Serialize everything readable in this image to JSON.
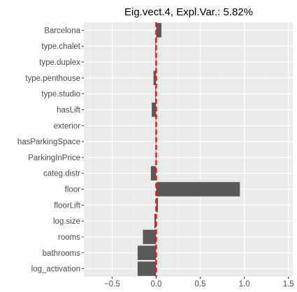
{
  "chart_data": {
    "type": "bar",
    "orientation": "horizontal",
    "title": "Eig.vect.4, Expl.Var.: 5.82%",
    "xlabel": "",
    "ylabel": "",
    "xlim": [
      -0.82,
      1.55
    ],
    "x_ticks": [
      -0.5,
      0.0,
      0.5,
      1.0,
      1.5
    ],
    "x_tick_labels": [
      "−0.5",
      "0.0",
      "0.5",
      "1.0",
      "1.5"
    ],
    "grid": true,
    "categories": [
      "Barcelona",
      "type.chalet",
      "type.duplex",
      "type.penthouse",
      "type.studio",
      "hasLift",
      "exterior",
      "hasParkingSpace",
      "ParkingInPrice",
      "categ.distr",
      "floor",
      "floorLift",
      "log.size",
      "rooms",
      "bathrooms",
      "log_activation"
    ],
    "values": [
      0.06,
      -0.01,
      -0.005,
      -0.03,
      -0.01,
      -0.05,
      -0.005,
      -0.005,
      -0.005,
      -0.06,
      0.95,
      0.02,
      -0.02,
      -0.15,
      -0.21,
      -0.21
    ],
    "bar_color": "#595959",
    "reference_line": {
      "value": 0,
      "color": "#e31a1c",
      "style": "dashed"
    },
    "panel_background": "#ebebeb"
  }
}
